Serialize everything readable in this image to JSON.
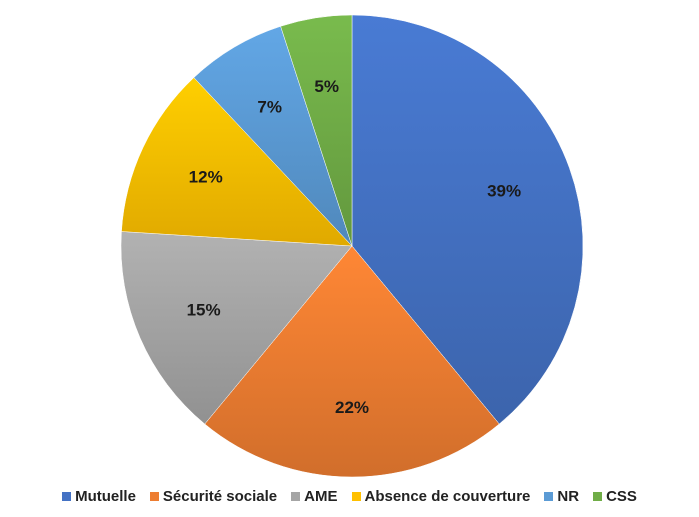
{
  "chart_data": {
    "type": "pie",
    "title": "",
    "legend_position": "bottom",
    "slices": [
      {
        "name": "Mutuelle",
        "value": 39,
        "label": "39%",
        "color": "#4472c4"
      },
      {
        "name": "Sécurité sociale",
        "value": 22,
        "label": "22%",
        "color": "#ed7d31"
      },
      {
        "name": "AME",
        "value": 15,
        "label": "15%",
        "color": "#a5a5a5"
      },
      {
        "name": "Absence de couverture",
        "value": 12,
        "label": "12%",
        "color": "#ffc000"
      },
      {
        "name": "NR",
        "value": 7,
        "label": "7%",
        "color": "#5b9bd5"
      },
      {
        "name": "CSS",
        "value": 5,
        "label": "5%",
        "color": "#70ad47"
      }
    ]
  }
}
